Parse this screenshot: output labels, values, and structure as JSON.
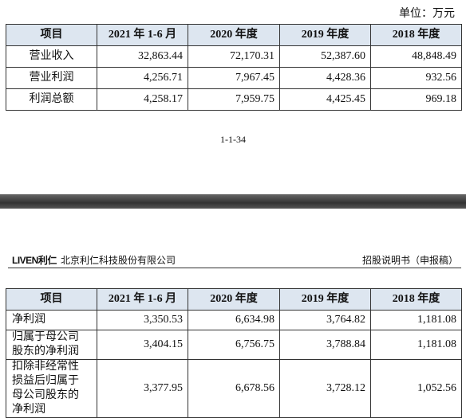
{
  "unit": "单位：万元",
  "table1": {
    "columns": [
      "项目",
      "2021 年 1-6 月",
      "2020 年度",
      "2019 年度",
      "2018 年度"
    ],
    "rows": [
      [
        "营业收入",
        "32,863.44",
        "72,170.31",
        "52,387.60",
        "48,848.49"
      ],
      [
        "营业利润",
        "4,256.71",
        "7,967.45",
        "4,428.36",
        "932.56"
      ],
      [
        "利润总额",
        "4,258.17",
        "7,959.75",
        "4,425.45",
        "969.18"
      ]
    ]
  },
  "page_number": "1-1-34",
  "page_header": {
    "logo": "LIVEN利仁",
    "company": "北京利仁科技股份有限公司",
    "doc_title": "招股说明书（申报稿）"
  },
  "table2": {
    "columns": [
      "项目",
      "2021 年 1-6 月",
      "2020 年度",
      "2019 年度",
      "2018 年度"
    ],
    "rows": [
      [
        "净利润",
        "3,350.53",
        "6,634.98",
        "3,764.82",
        "1,181.08"
      ],
      [
        "归属于母公司股东的净利润",
        "3,404.15",
        "6,756.75",
        "3,788.84",
        "1,181.08"
      ],
      [
        "扣除非经常性损益后归属于母公司股东的净利润",
        "3,377.95",
        "6,678.56",
        "3,728.12",
        "1,052.56"
      ]
    ]
  }
}
